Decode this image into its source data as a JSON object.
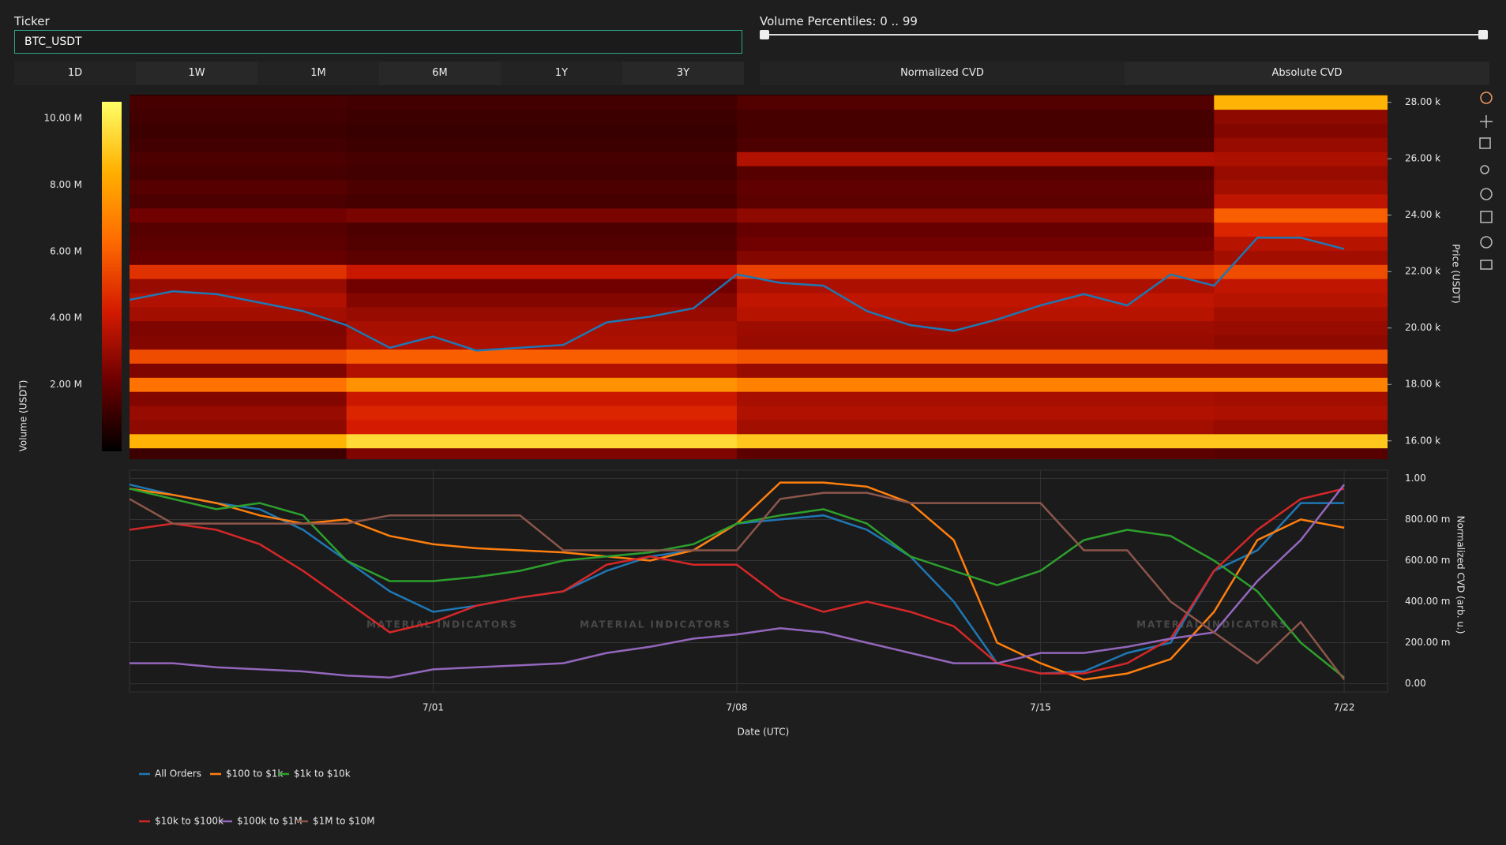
{
  "controls": {
    "ticker_label": "Ticker",
    "ticker_value": "BTC_USDT",
    "percentile_label": "Volume Percentiles: 0 .. 99",
    "timeframe_buttons": [
      "1D",
      "1W",
      "1M",
      "6M",
      "1Y",
      "3Y"
    ],
    "mode_buttons": [
      "Normalized CVD",
      "Absolute CVD"
    ]
  },
  "chart_data": [
    {
      "type": "heatmap",
      "y_title": "Price (USDT)",
      "colorbar_title": "Volume (USDT)",
      "xlim": [
        "6/24",
        "7/23"
      ],
      "ylim": [
        15350,
        28270
      ],
      "yticks": [
        {
          "value": 16000,
          "label": "16.00 k"
        },
        {
          "value": 18000,
          "label": "18.00 k"
        },
        {
          "value": 20000,
          "label": "20.00 k"
        },
        {
          "value": 22000,
          "label": "22.00 k"
        },
        {
          "value": 24000,
          "label": "24.00 k"
        },
        {
          "value": 26000,
          "label": "26.00 k"
        },
        {
          "value": 28000,
          "label": "28.00 k"
        }
      ],
      "colorscale": [
        "#000000",
        "#6b0000",
        "#d41a00",
        "#ff6a00",
        "#ffb000",
        "#ffff66"
      ],
      "zlim": [
        0,
        10500000
      ],
      "zticks": [
        {
          "value": 2000000,
          "label": "2.00 M"
        },
        {
          "value": 4000000,
          "label": "4.00 M"
        },
        {
          "value": 6000000,
          "label": "6.00 M"
        },
        {
          "value": 8000000,
          "label": "8.00 M"
        },
        {
          "value": 10000000,
          "label": "10.00 M"
        }
      ],
      "x_edges": [
        "6/24",
        "6/29",
        "7/08",
        "7/19",
        "7/23"
      ],
      "price_levels": [
        15500,
        16000,
        16500,
        17000,
        17500,
        18000,
        18500,
        19000,
        19500,
        20000,
        20500,
        21000,
        21500,
        22000,
        22500,
        23000,
        23500,
        24000,
        24500,
        25000,
        25500,
        26000,
        26500,
        27000,
        27500,
        28000
      ],
      "level_height": 500,
      "z": [
        [
          1200000,
          2500000,
          1800000,
          1700000
        ],
        [
          8500000,
          9500000,
          9000000,
          9000000
        ],
        [
          2800000,
          4200000,
          3200000,
          3000000
        ],
        [
          3000000,
          4500000,
          3500000,
          3400000
        ],
        [
          2600000,
          4000000,
          3300000,
          3200000
        ],
        [
          6500000,
          7500000,
          7000000,
          7000000
        ],
        [
          2500000,
          3500000,
          3000000,
          3000000
        ],
        [
          5500000,
          6000000,
          5800000,
          5800000
        ],
        [
          2600000,
          3400000,
          3000000,
          2800000
        ],
        [
          2500000,
          3300000,
          3100000,
          3000000
        ],
        [
          3200000,
          3000000,
          3600000,
          3200000
        ],
        [
          3500000,
          2600000,
          3800000,
          3600000
        ],
        [
          3000000,
          2200000,
          3400000,
          3800000
        ],
        [
          4800000,
          4000000,
          5200000,
          5500000
        ],
        [
          2000000,
          1800000,
          2600000,
          3200000
        ],
        [
          1800000,
          1600000,
          2200000,
          3600000
        ],
        [
          1700000,
          1500000,
          2000000,
          4500000
        ],
        [
          2200000,
          2400000,
          2800000,
          6000000
        ],
        [
          1500000,
          1400000,
          1800000,
          3800000
        ],
        [
          1700000,
          1500000,
          1900000,
          3200000
        ],
        [
          1400000,
          1300000,
          1700000,
          3000000
        ],
        [
          1500000,
          1400000,
          3500000,
          3400000
        ],
        [
          1300000,
          1200000,
          1500000,
          3000000
        ],
        [
          1200000,
          1100000,
          1400000,
          2600000
        ],
        [
          1300000,
          1200000,
          1400000,
          2800000
        ],
        [
          1400000,
          1300000,
          1600000,
          8500000
        ]
      ],
      "x": [
        "6/24",
        "6/25",
        "6/26",
        "6/27",
        "6/28",
        "6/29",
        "6/30",
        "7/01",
        "7/02",
        "7/03",
        "7/04",
        "7/05",
        "7/06",
        "7/07",
        "7/08",
        "7/09",
        "7/10",
        "7/11",
        "7/12",
        "7/13",
        "7/14",
        "7/15",
        "7/16",
        "7/17",
        "7/18",
        "7/19",
        "7/20",
        "7/21",
        "7/22"
      ],
      "price": {
        "color": "#1f77b4",
        "values": [
          21000,
          21300,
          21200,
          20900,
          20600,
          20100,
          19300,
          19700,
          19200,
          19300,
          19400,
          20200,
          20400,
          20700,
          21900,
          21600,
          21500,
          20600,
          20100,
          19900,
          20300,
          20800,
          21200,
          20800,
          21900,
          21500,
          23200,
          23200,
          22800
        ]
      }
    },
    {
      "type": "line",
      "y_title": "Normalized CVD (arb. u.)",
      "x_title": "Date (UTC)",
      "watermark": "MATERIAL INDICATORS",
      "xlim": [
        "6/24",
        "7/23"
      ],
      "ylim": [
        -0.04,
        1.04
      ],
      "xticks": [
        "7/01",
        "7/08",
        "7/15",
        "7/22"
      ],
      "yticks": [
        {
          "value": 0,
          "label": "0.00"
        },
        {
          "value": 0.2,
          "label": "200.00 m"
        },
        {
          "value": 0.4,
          "label": "400.00 m"
        },
        {
          "value": 0.6,
          "label": "600.00 m"
        },
        {
          "value": 0.8,
          "label": "800.00 m"
        },
        {
          "value": 1,
          "label": "1.00"
        }
      ],
      "grid": true,
      "x": [
        "6/24",
        "6/25",
        "6/26",
        "6/27",
        "6/28",
        "6/29",
        "6/30",
        "7/01",
        "7/02",
        "7/03",
        "7/04",
        "7/05",
        "7/06",
        "7/07",
        "7/08",
        "7/09",
        "7/10",
        "7/11",
        "7/12",
        "7/13",
        "7/14",
        "7/15",
        "7/16",
        "7/17",
        "7/18",
        "7/19",
        "7/20",
        "7/21",
        "7/22"
      ],
      "series": [
        {
          "name": "All Orders",
          "color": "#1f77b4",
          "values": [
            0.97,
            0.92,
            0.88,
            0.85,
            0.75,
            0.6,
            0.45,
            0.35,
            0.38,
            0.42,
            0.45,
            0.55,
            0.62,
            0.65,
            0.78,
            0.8,
            0.82,
            0.75,
            0.62,
            0.4,
            0.1,
            0.05,
            0.06,
            0.15,
            0.2,
            0.55,
            0.65,
            0.88,
            0.88
          ]
        },
        {
          "name": "$100 to $1k",
          "color": "#ff7f0e",
          "values": [
            0.95,
            0.92,
            0.88,
            0.82,
            0.78,
            0.8,
            0.72,
            0.68,
            0.66,
            0.65,
            0.64,
            0.62,
            0.6,
            0.65,
            0.78,
            0.98,
            0.98,
            0.96,
            0.88,
            0.7,
            0.2,
            0.1,
            0.02,
            0.05,
            0.12,
            0.35,
            0.7,
            0.8,
            0.76
          ]
        },
        {
          "name": "$1k to $10k",
          "color": "#2ca02c",
          "values": [
            0.95,
            0.9,
            0.85,
            0.88,
            0.82,
            0.6,
            0.5,
            0.5,
            0.52,
            0.55,
            0.6,
            0.62,
            0.64,
            0.68,
            0.78,
            0.82,
            0.85,
            0.78,
            0.62,
            0.55,
            0.48,
            0.55,
            0.7,
            0.75,
            0.72,
            0.6,
            0.45,
            0.2,
            0.03
          ]
        },
        {
          "name": "$10k to $100k",
          "color": "#d62728",
          "values": [
            0.75,
            0.78,
            0.75,
            0.68,
            0.55,
            0.4,
            0.25,
            0.3,
            0.38,
            0.42,
            0.45,
            0.58,
            0.62,
            0.58,
            0.58,
            0.42,
            0.35,
            0.4,
            0.35,
            0.28,
            0.1,
            0.05,
            0.05,
            0.1,
            0.22,
            0.55,
            0.75,
            0.9,
            0.95
          ]
        },
        {
          "name": "$100k to $1M",
          "color": "#9467bd",
          "values": [
            0.1,
            0.1,
            0.08,
            0.07,
            0.06,
            0.04,
            0.03,
            0.07,
            0.08,
            0.09,
            0.1,
            0.15,
            0.18,
            0.22,
            0.24,
            0.27,
            0.25,
            0.2,
            0.15,
            0.1,
            0.1,
            0.15,
            0.15,
            0.18,
            0.22,
            0.25,
            0.5,
            0.7,
            0.97
          ]
        },
        {
          "name": "$1M to $10M",
          "color": "#8c564b",
          "values": [
            0.9,
            0.78,
            0.78,
            0.78,
            0.78,
            0.78,
            0.82,
            0.82,
            0.82,
            0.82,
            0.65,
            0.65,
            0.65,
            0.65,
            0.65,
            0.9,
            0.93,
            0.93,
            0.88,
            0.88,
            0.88,
            0.88,
            0.65,
            0.65,
            0.4,
            0.25,
            0.1,
            0.3,
            0.02
          ]
        }
      ]
    }
  ]
}
